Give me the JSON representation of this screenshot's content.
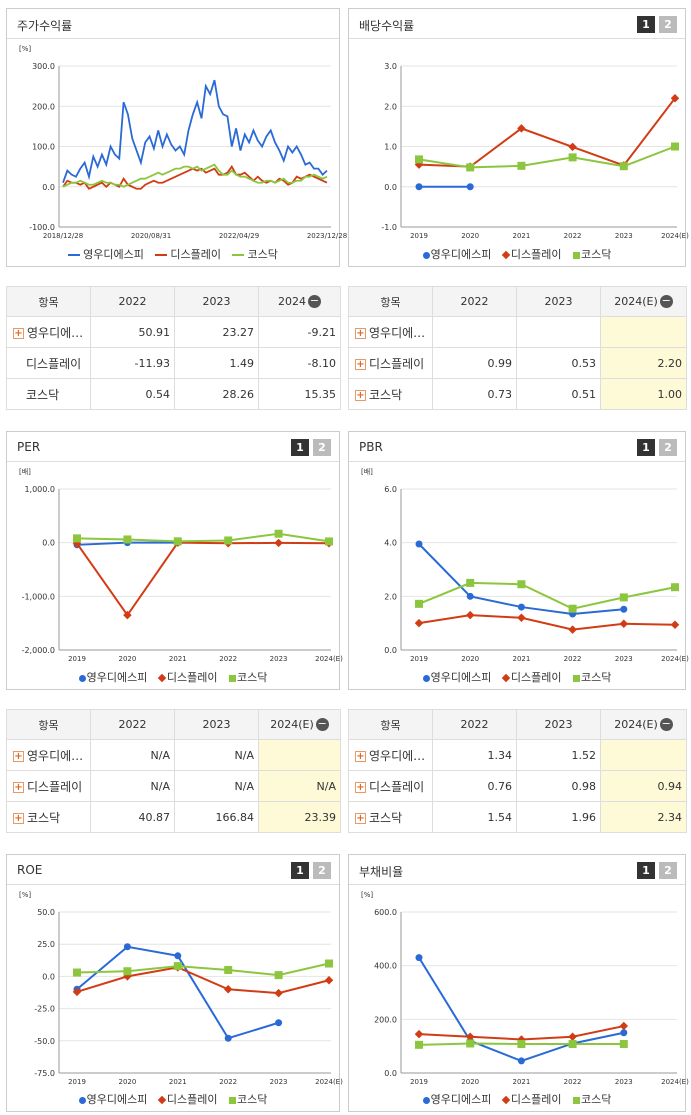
{
  "colors": {
    "s1": "#2a6ad6",
    "s2": "#d23c14",
    "s3": "#8cc63e"
  },
  "series_names": [
    "영우디에스피",
    "디스플레이",
    "코스닥"
  ],
  "panels": {
    "stock": {
      "title": "주가수익률",
      "unit": "[%]"
    },
    "div": {
      "title": "배당수익률"
    },
    "per": {
      "title": "PER",
      "unit": "[배]"
    },
    "pbr": {
      "title": "PBR",
      "unit": "[배]"
    },
    "roe": {
      "title": "ROE",
      "unit": "[%]"
    },
    "debt": {
      "title": "부채비율",
      "unit": "[%]"
    }
  },
  "buttons": {
    "b1": "1",
    "b2": "2"
  },
  "tables": {
    "stock": {
      "h0": "항목",
      "h1": "2022",
      "h2": "2023",
      "h3": "2024",
      "rows": [
        {
          "name": "영우디에…",
          "v1": "50.91",
          "v2": "23.27",
          "v3": "-9.21"
        },
        {
          "name": "디스플레이",
          "v1": "-11.93",
          "v2": "1.49",
          "v3": "-8.10"
        },
        {
          "name": "코스닥",
          "v1": "0.54",
          "v2": "28.26",
          "v3": "15.35"
        }
      ]
    },
    "div": {
      "h0": "항목",
      "h1": "2022",
      "h2": "2023",
      "h3": "2024(E)",
      "rows": [
        {
          "name": "영우디에…",
          "v1": "",
          "v2": "",
          "v3": ""
        },
        {
          "name": "디스플레이",
          "v1": "0.99",
          "v2": "0.53",
          "v3": "2.20"
        },
        {
          "name": "코스닥",
          "v1": "0.73",
          "v2": "0.51",
          "v3": "1.00"
        }
      ]
    },
    "per": {
      "h0": "항목",
      "h1": "2022",
      "h2": "2023",
      "h3": "2024(E)",
      "rows": [
        {
          "name": "영우디에…",
          "v1": "N/A",
          "v2": "N/A",
          "v3": ""
        },
        {
          "name": "디스플레이",
          "v1": "N/A",
          "v2": "N/A",
          "v3": "N/A"
        },
        {
          "name": "코스닥",
          "v1": "40.87",
          "v2": "166.84",
          "v3": "23.39"
        }
      ]
    },
    "pbr": {
      "h0": "항목",
      "h1": "2022",
      "h2": "2023",
      "h3": "2024(E)",
      "rows": [
        {
          "name": "영우디에…",
          "v1": "1.34",
          "v2": "1.52",
          "v3": ""
        },
        {
          "name": "디스플레이",
          "v1": "0.76",
          "v2": "0.98",
          "v3": "0.94"
        },
        {
          "name": "코스닥",
          "v1": "1.54",
          "v2": "1.96",
          "v3": "2.34"
        }
      ]
    }
  },
  "chart_data": [
    {
      "id": "stock",
      "type": "line",
      "title": "주가수익률",
      "ylabel": "[%]",
      "ylim": [
        -100,
        300
      ],
      "yticks": [
        "300.0",
        "200.0",
        "100.0",
        "0.0",
        "-100.0"
      ],
      "xticks": [
        "2018/12/28",
        "2020/08/31",
        "2022/04/29",
        "2023/12/28"
      ],
      "x": [
        0,
        1,
        2,
        3,
        4,
        5,
        6,
        7,
        8,
        9,
        10,
        11,
        12,
        13,
        14,
        15,
        16,
        17,
        18,
        19,
        20,
        21,
        22,
        23,
        24,
        25,
        26,
        27,
        28,
        29,
        30,
        31,
        32,
        33,
        34,
        35,
        36,
        37,
        38,
        39,
        40,
        41,
        42,
        43,
        44,
        45,
        46,
        47,
        48,
        49,
        50,
        51,
        52,
        53,
        54,
        55,
        56,
        57,
        58,
        59,
        60,
        61
      ],
      "series": [
        {
          "name": "영우디에스피",
          "values": [
            10,
            40,
            30,
            25,
            45,
            60,
            25,
            75,
            50,
            80,
            55,
            100,
            80,
            70,
            210,
            180,
            120,
            90,
            60,
            110,
            125,
            95,
            140,
            100,
            130,
            105,
            90,
            100,
            80,
            140,
            180,
            210,
            170,
            250,
            230,
            265,
            200,
            180,
            175,
            100,
            145,
            90,
            130,
            110,
            140,
            115,
            100,
            125,
            140,
            110,
            90,
            65,
            100,
            85,
            100,
            80,
            55,
            60,
            45,
            45,
            30,
            40
          ]
        },
        {
          "name": "디스플레이",
          "values": [
            0,
            15,
            10,
            10,
            5,
            10,
            -5,
            0,
            5,
            10,
            0,
            10,
            5,
            0,
            20,
            5,
            0,
            -5,
            -5,
            5,
            10,
            15,
            10,
            10,
            15,
            20,
            25,
            30,
            35,
            40,
            45,
            40,
            45,
            35,
            40,
            45,
            30,
            30,
            35,
            50,
            30,
            30,
            35,
            25,
            15,
            25,
            15,
            10,
            15,
            10,
            20,
            15,
            5,
            10,
            25,
            20,
            25,
            30,
            25,
            20,
            15,
            10
          ]
        },
        {
          "name": "코스닥",
          "values": [
            0,
            5,
            10,
            10,
            15,
            10,
            5,
            5,
            10,
            15,
            10,
            10,
            5,
            5,
            0,
            5,
            10,
            15,
            20,
            20,
            25,
            30,
            35,
            30,
            35,
            40,
            45,
            45,
            50,
            50,
            45,
            50,
            40,
            45,
            50,
            55,
            40,
            30,
            30,
            40,
            30,
            25,
            25,
            20,
            15,
            10,
            10,
            15,
            15,
            10,
            15,
            20,
            10,
            10,
            15,
            15,
            25,
            25,
            30,
            25,
            20,
            25
          ]
        }
      ]
    },
    {
      "id": "div",
      "type": "line",
      "title": "배당수익률",
      "ylim": [
        -1,
        3
      ],
      "yticks": [
        "3.0",
        "2.0",
        "1.0",
        "0.0",
        "-1.0"
      ],
      "categories": [
        "2019",
        "2020",
        "2021",
        "2022",
        "2023",
        "2024(E)"
      ],
      "series": [
        {
          "name": "영우디에스피",
          "values": [
            0,
            0,
            null,
            null,
            null,
            null
          ]
        },
        {
          "name": "디스플레이",
          "values": [
            0.55,
            0.5,
            1.45,
            0.99,
            0.53,
            2.2
          ]
        },
        {
          "name": "코스닥",
          "values": [
            0.68,
            0.48,
            0.52,
            0.73,
            0.51,
            1.0
          ]
        }
      ]
    },
    {
      "id": "per",
      "type": "line",
      "title": "PER",
      "ylabel": "[배]",
      "ylim": [
        -2000,
        1000
      ],
      "yticks": [
        "1,000.0",
        "0.0",
        "-1,000.0",
        "-2,000.0"
      ],
      "categories": [
        "2019",
        "2020",
        "2021",
        "2022",
        "2023",
        "2024(E)"
      ],
      "series": [
        {
          "name": "영우디에스피",
          "values": [
            -40,
            0,
            0,
            null,
            null,
            null
          ]
        },
        {
          "name": "디스플레이",
          "values": [
            -15,
            -1350,
            0,
            -10,
            -5,
            -10
          ]
        },
        {
          "name": "코스닥",
          "values": [
            80,
            60,
            25,
            40.87,
            166.84,
            23.39
          ]
        }
      ]
    },
    {
      "id": "pbr",
      "type": "line",
      "title": "PBR",
      "ylabel": "[배]",
      "ylim": [
        0,
        6
      ],
      "yticks": [
        "6.0",
        "4.0",
        "2.0",
        "0.0"
      ],
      "categories": [
        "2019",
        "2020",
        "2021",
        "2022",
        "2023",
        "2024(E)"
      ],
      "series": [
        {
          "name": "영우디에스피",
          "values": [
            3.95,
            2.0,
            1.6,
            1.34,
            1.52,
            null
          ]
        },
        {
          "name": "디스플레이",
          "values": [
            1.0,
            1.3,
            1.2,
            0.76,
            0.98,
            0.94
          ]
        },
        {
          "name": "코스닥",
          "values": [
            1.72,
            2.5,
            2.45,
            1.54,
            1.96,
            2.34
          ]
        }
      ]
    },
    {
      "id": "roe",
      "type": "line",
      "title": "ROE",
      "ylabel": "[%]",
      "ylim": [
        -75,
        50
      ],
      "yticks": [
        "50.0",
        "25.0",
        "0.0",
        "-25.0",
        "-50.0",
        "-75.0"
      ],
      "categories": [
        "2019",
        "2020",
        "2021",
        "2022",
        "2023",
        "2024(E)"
      ],
      "series": [
        {
          "name": "영우디에스피",
          "values": [
            -10,
            23,
            16,
            -48,
            -36,
            null
          ]
        },
        {
          "name": "디스플레이",
          "values": [
            -12,
            0,
            7,
            -10,
            -13,
            -3
          ]
        },
        {
          "name": "코스닥",
          "values": [
            3,
            4,
            8,
            5,
            1,
            10
          ]
        }
      ]
    },
    {
      "id": "debt",
      "type": "line",
      "title": "부채비율",
      "ylabel": "[%]",
      "ylim": [
        0,
        600
      ],
      "yticks": [
        "600.0",
        "400.0",
        "200.0",
        "0.0"
      ],
      "categories": [
        "2019",
        "2020",
        "2021",
        "2022",
        "2023",
        "2024(E)"
      ],
      "series": [
        {
          "name": "영우디에스피",
          "values": [
            430,
            120,
            45,
            110,
            150,
            null
          ]
        },
        {
          "name": "디스플레이",
          "values": [
            145,
            135,
            125,
            135,
            175,
            null
          ]
        },
        {
          "name": "코스닥",
          "values": [
            105,
            110,
            108,
            108,
            108,
            null
          ]
        }
      ]
    }
  ]
}
